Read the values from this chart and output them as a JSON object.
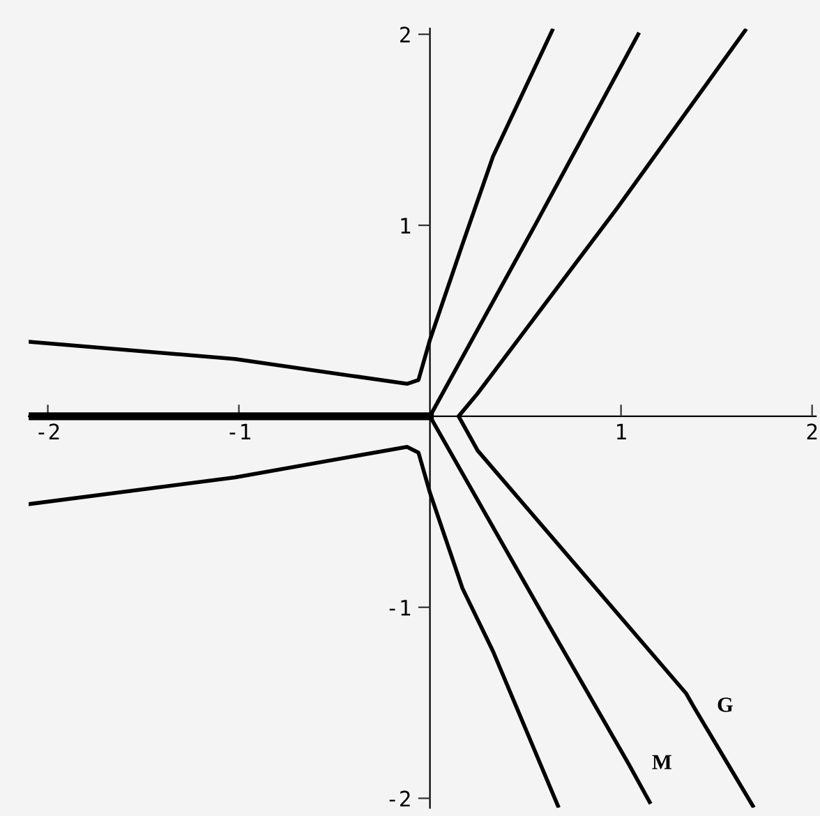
{
  "chart_data": {
    "type": "line",
    "xlim": [
      -2.1,
      2.02
    ],
    "ylim": [
      -2.05,
      2.03
    ],
    "xticks": [
      -2,
      -1,
      1,
      2
    ],
    "yticks": [
      -2,
      -1,
      1,
      2
    ],
    "grid": false,
    "legend": false,
    "marker": "none",
    "line_style": "solid",
    "series": [
      {
        "color": "#000000",
        "x": [
          -2.1,
          -1.02,
          -0.12,
          -0.06,
          -0.02,
          0.0,
          0.17,
          0.33,
          0.64
        ],
        "values": [
          0.39,
          0.3,
          0.17,
          0.19,
          0.33,
          0.4,
          0.9,
          1.36,
          2.02
        ]
      },
      {
        "color": "#000000",
        "x": [
          -2.1,
          -1.02,
          -0.12,
          -0.06,
          -0.02,
          0.0,
          0.17,
          0.33,
          0.67
        ],
        "values": [
          -0.46,
          -0.32,
          -0.16,
          -0.19,
          -0.33,
          -0.4,
          -0.9,
          -1.23,
          -2.04
        ]
      },
      {
        "color": "#000000",
        "x": [
          0.0,
          0.55,
          1.09
        ],
        "values": [
          0.0,
          1.0,
          2.0
        ]
      },
      {
        "name": "M",
        "color": "#000000",
        "x": [
          0.0,
          0.58,
          1.04,
          1.15
        ],
        "values": [
          0.0,
          -1.02,
          -1.82,
          -2.02
        ]
      },
      {
        "color": "#000000",
        "x": [
          -2.1,
          -1.5,
          -0.6,
          -0.2,
          0.0
        ],
        "values": [
          0.0,
          0.0,
          0.0,
          0.0,
          0.0
        ]
      },
      {
        "name": "G",
        "color": "#000000",
        "x": [
          1.65,
          0.98,
          0.25,
          0.15,
          0.25,
          1.34,
          1.38,
          1.69
        ],
        "values": [
          2.02,
          1.09,
          0.12,
          0.0,
          -0.18,
          -1.45,
          -1.52,
          -2.04
        ]
      }
    ]
  }
}
